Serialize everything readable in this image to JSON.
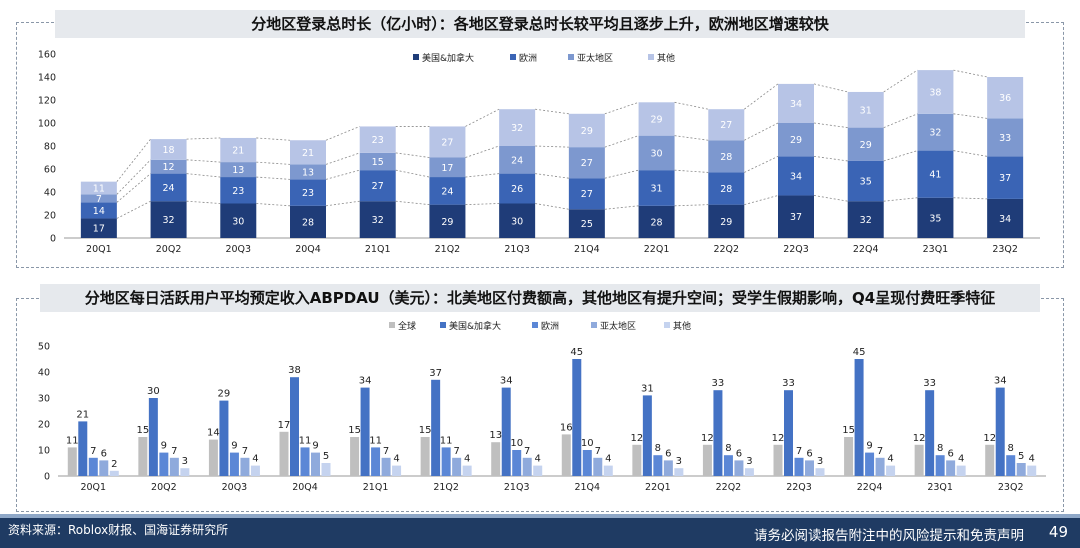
{
  "chart_data": [
    {
      "type": "bar",
      "stacked": true,
      "title": "分地区登录总时长（亿小时）：各地区登录总时长较平均且逐步上升，欧洲地区增速较快",
      "categories": [
        "20Q1",
        "20Q2",
        "20Q3",
        "20Q4",
        "21Q1",
        "21Q2",
        "21Q3",
        "21Q4",
        "22Q1",
        "22Q2",
        "22Q3",
        "22Q4",
        "23Q1",
        "23Q2"
      ],
      "series": [
        {
          "name": "美国&加拿大",
          "values": [
            17,
            32,
            30,
            28,
            32,
            29,
            30,
            25,
            28,
            29,
            37,
            32,
            35,
            34
          ]
        },
        {
          "name": "欧洲",
          "values": [
            14,
            24,
            23,
            23,
            27,
            24,
            26,
            27,
            31,
            28,
            34,
            35,
            41,
            37
          ]
        },
        {
          "name": "亚太地区",
          "values": [
            7,
            12,
            13,
            13,
            15,
            17,
            24,
            27,
            30,
            28,
            29,
            29,
            32,
            33
          ]
        },
        {
          "name": "其他",
          "values": [
            11,
            18,
            21,
            21,
            23,
            27,
            32,
            29,
            29,
            27,
            34,
            31,
            38,
            36
          ]
        }
      ],
      "yticks": [
        "0",
        "20",
        "40",
        "60",
        "80",
        "100",
        "120",
        "140",
        "160"
      ],
      "ylim": [
        0,
        160
      ],
      "legend_position": "top"
    },
    {
      "type": "bar",
      "title": "分地区每日活跃用户平均预定收入ABPDAU（美元）：北美地区付费额高，其他地区有提升空间；受学生假期影响，Q4呈现付费旺季特征",
      "categories": [
        "20Q1",
        "20Q2",
        "20Q3",
        "20Q4",
        "21Q1",
        "21Q2",
        "21Q3",
        "21Q4",
        "22Q1",
        "22Q2",
        "22Q3",
        "22Q4",
        "23Q1",
        "23Q2"
      ],
      "series": [
        {
          "name": "全球",
          "values": [
            11,
            15,
            14,
            17,
            15,
            15,
            13,
            16,
            12,
            12,
            12,
            15,
            12,
            12
          ],
          "labels": [
            "11",
            "",
            "",
            "",
            "",
            "",
            "",
            "",
            "",
            "",
            "",
            "",
            "",
            ""
          ]
        },
        {
          "name": "美国&加拿大",
          "values": [
            21,
            30,
            29,
            38,
            34,
            37,
            34,
            45,
            31,
            33,
            33,
            45,
            33,
            34
          ]
        },
        {
          "name": "欧洲",
          "values": [
            7,
            9,
            9,
            11,
            11,
            11,
            10,
            10,
            8,
            8,
            7,
            9,
            8,
            8
          ]
        },
        {
          "name": "亚太地区",
          "values": [
            6,
            7,
            7,
            9,
            7,
            7,
            7,
            7,
            6,
            6,
            6,
            7,
            6,
            5
          ]
        },
        {
          "name": "其他",
          "values": [
            2,
            3,
            4,
            5,
            4,
            4,
            4,
            4,
            3,
            3,
            3,
            4,
            4,
            4
          ]
        }
      ],
      "yticks": [
        "0",
        "10",
        "20",
        "30",
        "40",
        "50"
      ],
      "ylim": [
        0,
        50
      ],
      "legend_position": "top"
    }
  ],
  "colors": {
    "chart1": [
      "#1f3c78",
      "#3a64b5",
      "#7d98cf",
      "#b7c4e6"
    ],
    "chart2": [
      "#bfbfbf",
      "#4472c4",
      "#5b87d6",
      "#8faadc",
      "#c5d3ef"
    ]
  },
  "footer": {
    "source": "资料来源：Roblox财报、国海证券研究所",
    "disclaimer": "请务必阅读报告附注中的风险提示和免责声明",
    "page": "49"
  }
}
